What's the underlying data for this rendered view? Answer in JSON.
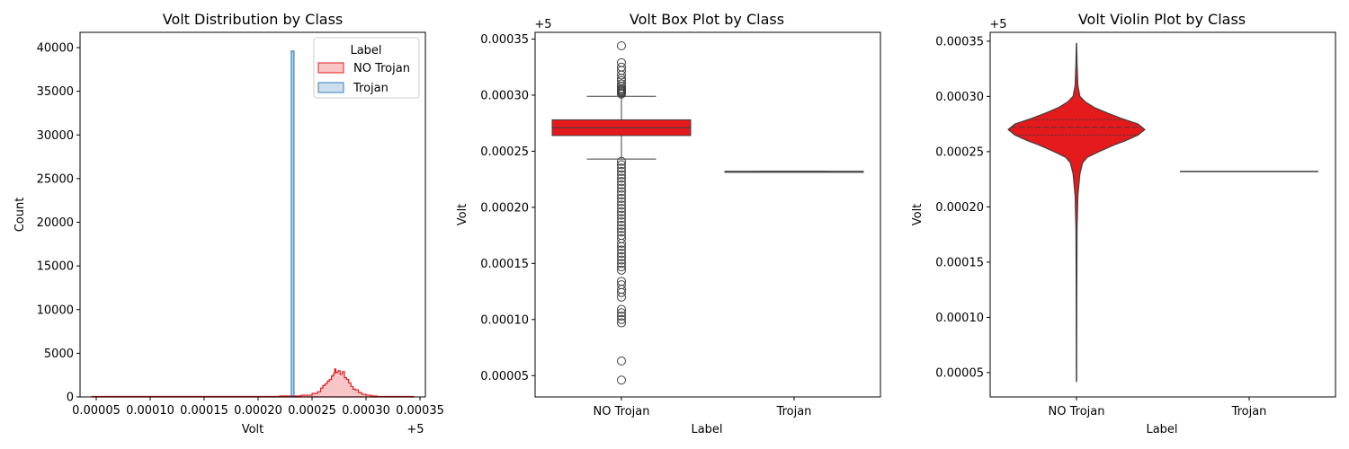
{
  "figure": {
    "background": "#ffffff"
  },
  "colors": {
    "no_trojan": "#e41a1c",
    "trojan": "#377eb8",
    "box_edge": "#3f3f3f"
  },
  "chart_data": [
    {
      "type": "histogram",
      "title": "Volt Distribution by Class",
      "xlabel": "Volt",
      "ylabel": "Count",
      "offset_label": "+5",
      "xlim": [
        3.5e-05,
        0.000355
      ],
      "ylim": [
        0,
        41750
      ],
      "xticks": [
        5e-05,
        0.0001,
        0.00015,
        0.0002,
        0.00025,
        0.0003,
        0.00035
      ],
      "xtick_labels": [
        "0.00005",
        "0.00010",
        "0.00015",
        "0.00020",
        "0.00025",
        "0.00030",
        "0.00035"
      ],
      "yticks": [
        0,
        5000,
        10000,
        15000,
        20000,
        25000,
        30000,
        35000,
        40000
      ],
      "ytick_labels": [
        "0",
        "5000",
        "10000",
        "15000",
        "20000",
        "25000",
        "30000",
        "35000",
        "40000"
      ],
      "legend": {
        "title": "Label",
        "position": "top-right",
        "entries": [
          "NO Trojan",
          "Trojan"
        ]
      },
      "series": [
        {
          "name": "NO Trojan",
          "color": "#e41a1c",
          "bin_range": [
            4.6e-05,
            0.000344
          ],
          "bins": [
            [
              4.6e-05,
              50
            ],
            [
              0.00022,
              100
            ],
            [
              0.00024,
              200
            ],
            [
              0.00025,
              400
            ],
            [
              0.000255,
              600
            ],
            [
              0.000258,
              1000
            ],
            [
              0.00026,
              1300
            ],
            [
              0.000262,
              1500
            ],
            [
              0.000264,
              1800
            ],
            [
              0.000266,
              2000
            ],
            [
              0.000268,
              2400
            ],
            [
              0.00027,
              2700
            ],
            [
              0.000271,
              3200
            ],
            [
              0.000272,
              2800
            ],
            [
              0.000274,
              3000
            ],
            [
              0.000276,
              2600
            ],
            [
              0.000278,
              2900
            ],
            [
              0.00028,
              2200
            ],
            [
              0.000282,
              2000
            ],
            [
              0.000284,
              1600
            ],
            [
              0.000286,
              1200
            ],
            [
              0.000288,
              900
            ],
            [
              0.00029,
              800
            ],
            [
              0.000293,
              500
            ],
            [
              0.000296,
              300
            ],
            [
              0.0003,
              200
            ],
            [
              0.000305,
              100
            ],
            [
              0.00031,
              60
            ],
            [
              0.000344,
              60
            ]
          ]
        },
        {
          "name": "Trojan",
          "color": "#377eb8",
          "bins": [
            [
              0.000232,
              39600
            ]
          ],
          "bin_width": 2.5e-06
        }
      ]
    },
    {
      "type": "box",
      "title": "Volt Box Plot by Class",
      "xlabel": "Label",
      "ylabel": "Volt",
      "offset_label": "+5",
      "categories": [
        "NO Trojan",
        "Trojan"
      ],
      "ylim": [
        3.1e-05,
        0.000356
      ],
      "yticks": [
        5e-05,
        0.0001,
        0.00015,
        0.0002,
        0.00025,
        0.0003,
        0.00035
      ],
      "ytick_labels": [
        "0.00005",
        "0.00010",
        "0.00015",
        "0.00020",
        "0.00025",
        "0.00030",
        "0.00035"
      ],
      "boxes": [
        {
          "category": "NO Trojan",
          "q1": 0.000264,
          "median": 0.000271,
          "q3": 0.000278,
          "whisker_low": 0.000243,
          "whisker_high": 0.000299,
          "color": "#e41a1c"
        },
        {
          "category": "Trojan",
          "q1": 0.000232,
          "median": 0.000232,
          "q3": 0.000232,
          "whisker_low": 0.000232,
          "whisker_high": 0.000232,
          "color": "#377eb8"
        }
      ],
      "outliers_high": [
        0.000301,
        0.000302,
        0.000303,
        0.000304,
        0.000305,
        0.000306,
        0.000308,
        0.00031,
        0.000313,
        0.000315,
        0.000318,
        0.000322,
        0.000325,
        0.000329,
        0.000344
      ],
      "outliers_low": [
        4.6e-05,
        6.3e-05,
        9.7e-05,
        0.0001,
        0.000103,
        0.000106,
        0.000109,
        0.00012,
        0.000124,
        0.000127,
        0.000131,
        0.000134,
        0.000144,
        0.000147,
        0.00015,
        0.000153,
        0.000156,
        0.000159,
        0.000162,
        0.000165,
        0.000168,
        0.000172,
        0.000175,
        0.000178,
        0.000181,
        0.000184,
        0.000187,
        0.00019,
        0.000193,
        0.000196,
        0.000199,
        0.000202,
        0.000205,
        0.000208,
        0.000211,
        0.000214,
        0.000217,
        0.00022,
        0.000223,
        0.000226,
        0.000229,
        0.000232,
        0.000235,
        0.000238,
        0.000241
      ]
    },
    {
      "type": "violin",
      "title": "Volt Violin Plot by Class",
      "xlabel": "Label",
      "ylabel": "Volt",
      "offset_label": "+5",
      "categories": [
        "NO Trojan",
        "Trojan"
      ],
      "ylim": [
        2.8e-05,
        0.000358
      ],
      "yticks": [
        5e-05,
        0.0001,
        0.00015,
        0.0002,
        0.00025,
        0.0003,
        0.00035
      ],
      "ytick_labels": [
        "0.00005",
        "0.00010",
        "0.00015",
        "0.00020",
        "0.00025",
        "0.00030",
        "0.00035"
      ],
      "violins": [
        {
          "category": "NO Trojan",
          "color": "#e41a1c",
          "quartiles": [
            0.000265,
            0.000272,
            0.000279
          ],
          "profile": [
            [
              4.2e-05,
              0.002
            ],
            [
              0.00012,
              0.004
            ],
            [
              0.00018,
              0.008
            ],
            [
              0.00021,
              0.02
            ],
            [
              0.00023,
              0.05
            ],
            [
              0.00024,
              0.09
            ],
            [
              0.000245,
              0.16
            ],
            [
              0.00025,
              0.33
            ],
            [
              0.000256,
              0.55
            ],
            [
              0.00026,
              0.72
            ],
            [
              0.000265,
              0.9
            ],
            [
              0.00027,
              1.0
            ],
            [
              0.000275,
              0.9
            ],
            [
              0.00028,
              0.66
            ],
            [
              0.000285,
              0.45
            ],
            [
              0.00029,
              0.26
            ],
            [
              0.000295,
              0.13
            ],
            [
              0.0003,
              0.05
            ],
            [
              0.00031,
              0.02
            ],
            [
              0.00033,
              0.008
            ],
            [
              0.000348,
              0.002
            ]
          ]
        },
        {
          "category": "Trojan",
          "color": "#377eb8",
          "value": 0.000232
        }
      ]
    }
  ]
}
